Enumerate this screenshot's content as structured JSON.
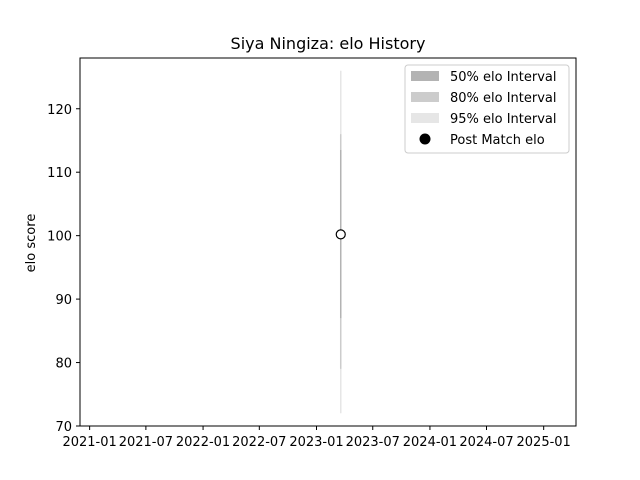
{
  "chart_data": {
    "type": "line",
    "title": "Siya Ningiza: elo History",
    "xlabel": "",
    "ylabel": "elo score",
    "xlim": [
      "2020-12-01",
      "2025-04-15"
    ],
    "ylim": [
      70,
      128
    ],
    "x_ticks": [
      "2021-01",
      "2021-07",
      "2022-01",
      "2022-07",
      "2023-01",
      "2023-07",
      "2024-01",
      "2024-07",
      "2025-01"
    ],
    "y_ticks": [
      70,
      80,
      90,
      100,
      110,
      120
    ],
    "grid": false,
    "legend_position": "top-right",
    "points": [
      {
        "date": "2023-03-20",
        "elo": 100.2,
        "interval_50": [
          87.0,
          113.5
        ],
        "interval_80": [
          79.0,
          116.0
        ],
        "interval_95": [
          72.0,
          126.0
        ]
      }
    ],
    "legend": [
      {
        "label": "50% elo Interval",
        "kind": "band",
        "color": "#b3b3b3"
      },
      {
        "label": "80% elo Interval",
        "kind": "band",
        "color": "#cccccc"
      },
      {
        "label": "95% elo Interval",
        "kind": "band",
        "color": "#e6e6e6"
      },
      {
        "label": "Post Match elo",
        "kind": "marker",
        "color": "#000000"
      }
    ]
  }
}
